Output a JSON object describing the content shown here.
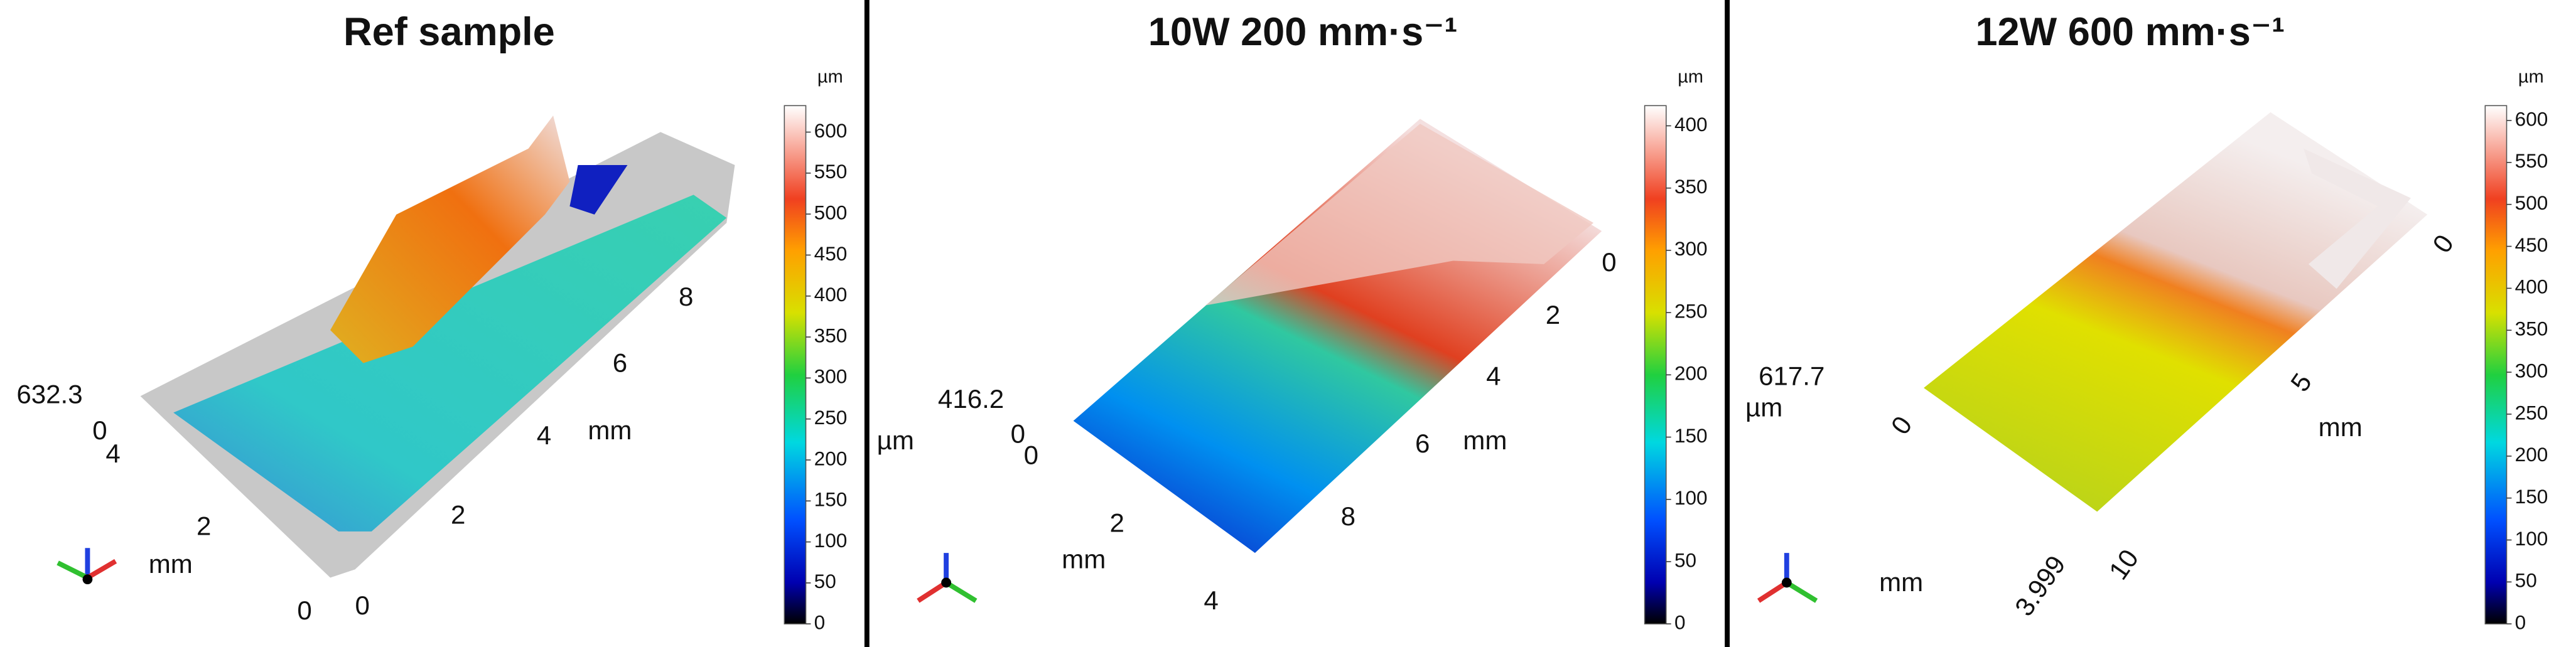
{
  "panels": [
    {
      "title": "Ref sample",
      "colorbar_unit": "µm",
      "z_max": 632.3,
      "colorbar_ticks": [
        0,
        50,
        100,
        150,
        200,
        250,
        300,
        350,
        400,
        450,
        500,
        550,
        600
      ],
      "axis_labels": [
        "0",
        "4",
        "mm",
        "2",
        "0",
        "0",
        "2",
        "4",
        "mm",
        "6",
        "8"
      ]
    },
    {
      "title": "10W 200 mm·s⁻¹",
      "colorbar_unit": "µm",
      "z_max": 416.2,
      "colorbar_ticks": [
        0,
        50,
        100,
        150,
        200,
        250,
        300,
        350,
        400
      ],
      "axis_labels": [
        "µm",
        "0",
        "0",
        "2",
        "mm",
        "4",
        "8",
        "6",
        "mm",
        "4",
        "2",
        "0"
      ]
    },
    {
      "title": "12W 600 mm·s⁻¹",
      "colorbar_unit": "µm",
      "z_max": 617.7,
      "colorbar_ticks": [
        0,
        50,
        100,
        150,
        200,
        250,
        300,
        350,
        400,
        450,
        500,
        550,
        600
      ],
      "axis_labels": [
        "µm",
        "0",
        "mm",
        "3.999",
        "10",
        "5",
        "mm",
        "0"
      ]
    }
  ]
}
